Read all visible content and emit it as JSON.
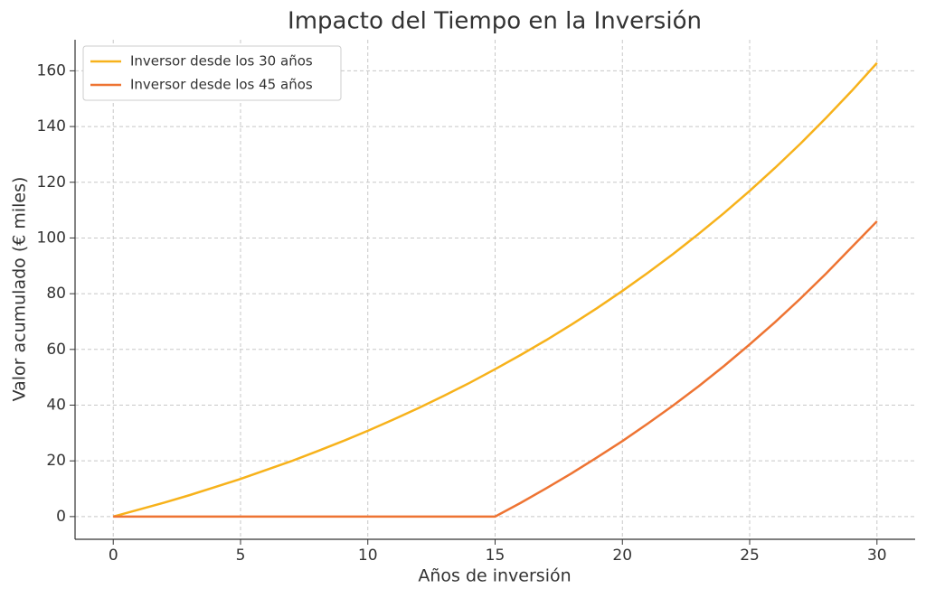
{
  "chart_data": {
    "type": "line",
    "title": "Impacto del Tiempo en la Inversión",
    "x_label": "Años de inversión",
    "y_label": "Valor acumulado (€ miles)",
    "x": [
      0,
      1,
      2,
      3,
      4,
      5,
      6,
      7,
      8,
      9,
      10,
      11,
      12,
      13,
      14,
      15,
      16,
      17,
      18,
      19,
      20,
      21,
      22,
      23,
      24,
      25,
      26,
      27,
      28,
      29,
      30
    ],
    "series": [
      {
        "name": "Inversor desde los 30 años",
        "color": "#f7b21b",
        "values": [
          0,
          2.5,
          5.0,
          7.7,
          10.6,
          13.5,
          16.7,
          19.9,
          23.4,
          27.0,
          30.8,
          34.8,
          39.0,
          43.4,
          48.0,
          52.9,
          58.0,
          63.3,
          68.9,
          74.8,
          81.0,
          87.5,
          94.3,
          101.5,
          109.0,
          116.9,
          125.2,
          133.9,
          143.1,
          152.7,
          162.8
        ]
      },
      {
        "name": "Inversor desde los 45 años",
        "color": "#ee7433",
        "values": [
          0,
          0,
          0,
          0,
          0,
          0,
          0,
          0,
          0,
          0,
          0,
          0,
          0,
          0,
          0,
          0,
          4.9,
          10.1,
          15.5,
          21.2,
          27.1,
          33.4,
          39.9,
          46.8,
          54.1,
          61.8,
          69.8,
          78.3,
          87.2,
          96.6,
          106.0
        ]
      }
    ],
    "xlim": [
      -1.5,
      31.5
    ],
    "xticks": [
      0,
      5,
      10,
      15,
      20,
      25,
      30
    ],
    "ylim": [
      -8.15,
      171.15
    ],
    "yticks": [
      0,
      20,
      40,
      60,
      80,
      100,
      120,
      140,
      160
    ],
    "grid": true,
    "legend": "upper left"
  }
}
